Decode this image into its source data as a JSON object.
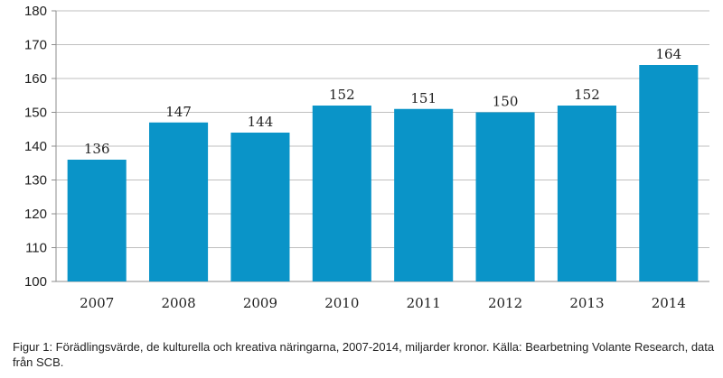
{
  "chart_data": {
    "type": "bar",
    "categories": [
      "2007",
      "2008",
      "2009",
      "2010",
      "2011",
      "2012",
      "2013",
      "2014"
    ],
    "values": [
      136,
      147,
      144,
      152,
      151,
      150,
      152,
      164
    ],
    "data_labels": [
      "136",
      "147",
      "144",
      "152",
      "151",
      "150",
      "152",
      "164"
    ],
    "ylim": [
      100,
      180
    ],
    "yticks": [
      100,
      110,
      120,
      130,
      140,
      150,
      160,
      170,
      180
    ],
    "grid": true,
    "bar_color": "#0a94c8",
    "grid_color": "#bfbfbf",
    "caption": "Figur 1: Förädlingsvärde, de kulturella och kreativa näringarna, 2007-2014, miljarder kronor. Källa: Bearbetning Volante Research, data från SCB."
  }
}
